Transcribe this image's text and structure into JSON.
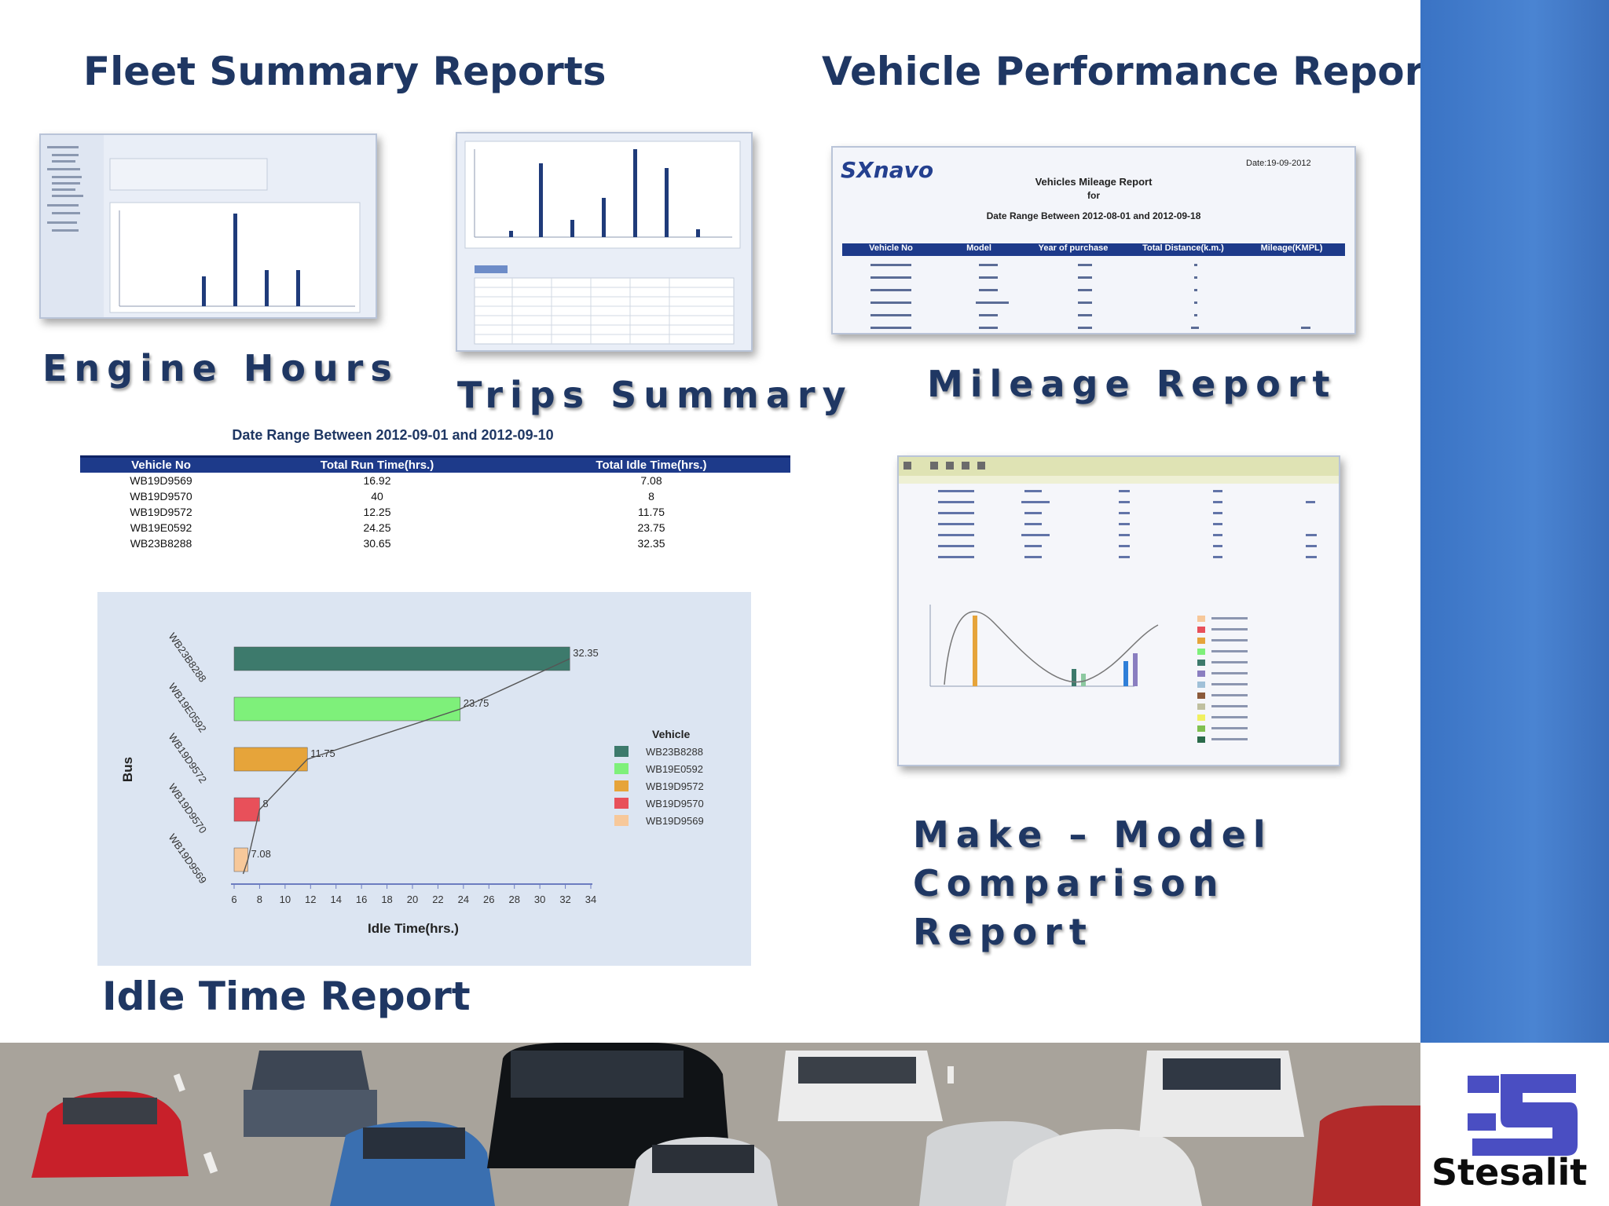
{
  "headings": {
    "fleet": "Fleet Summary Reports",
    "vehicle": "Vehicle Performance Reports"
  },
  "captions": {
    "engine_hours": "Engine Hours",
    "trips_summary": "Trips Summary",
    "mileage_report": "Mileage Report",
    "make_model": [
      "Make – Model",
      "Comparison",
      "Report"
    ],
    "idle_time": "Idle Time Report"
  },
  "mileage_thumb": {
    "brand": "SXnavo",
    "date": "Date:19-09-2012",
    "title": "Vehicles Mileage Report",
    "for": "for",
    "range": "Date Range Between 2012-08-01 and 2012-09-18",
    "columns": [
      "Vehicle No",
      "Model",
      "Year of purchase",
      "Total Distance(k.m.)",
      "Mileage(KMPL)"
    ]
  },
  "idle_table": {
    "title": "Date Range Between 2012-09-01 and 2012-09-10",
    "columns": [
      "Vehicle No",
      "Total Run Time(hrs.)",
      "Total Idle Time(hrs.)"
    ],
    "rows": [
      [
        "WB19D9569",
        "16.92",
        "7.08"
      ],
      [
        "WB19D9570",
        "40",
        "8"
      ],
      [
        "WB19D9572",
        "12.25",
        "11.75"
      ],
      [
        "WB19E0592",
        "24.25",
        "23.75"
      ],
      [
        "WB23B8288",
        "30.65",
        "32.35"
      ]
    ]
  },
  "logo": {
    "text": "Stesalit"
  },
  "chart_data": {
    "type": "bar",
    "orientation": "horizontal",
    "categories": [
      "WB23B8288",
      "WB19E0592",
      "WB19D9572",
      "WB19D9570",
      "WB19D9569"
    ],
    "values": [
      32.35,
      23.75,
      11.75,
      8,
      7.08
    ],
    "value_labels": [
      "32.35",
      "23.75",
      "11.75",
      "8",
      "7.08"
    ],
    "colors": [
      "#3d7a6c",
      "#7ef07a",
      "#e6a43a",
      "#e8505a",
      "#f7c89a"
    ],
    "xlabel": "Idle Time(hrs.)",
    "ylabel": "Bus",
    "xlim": [
      6,
      34
    ],
    "xticks": [
      "6",
      "8",
      "10",
      "12",
      "14",
      "16",
      "18",
      "20",
      "22",
      "24",
      "26",
      "28",
      "30",
      "32",
      "34"
    ],
    "legend_title": "Vehicle",
    "legend_position": "right",
    "trendline": true
  }
}
